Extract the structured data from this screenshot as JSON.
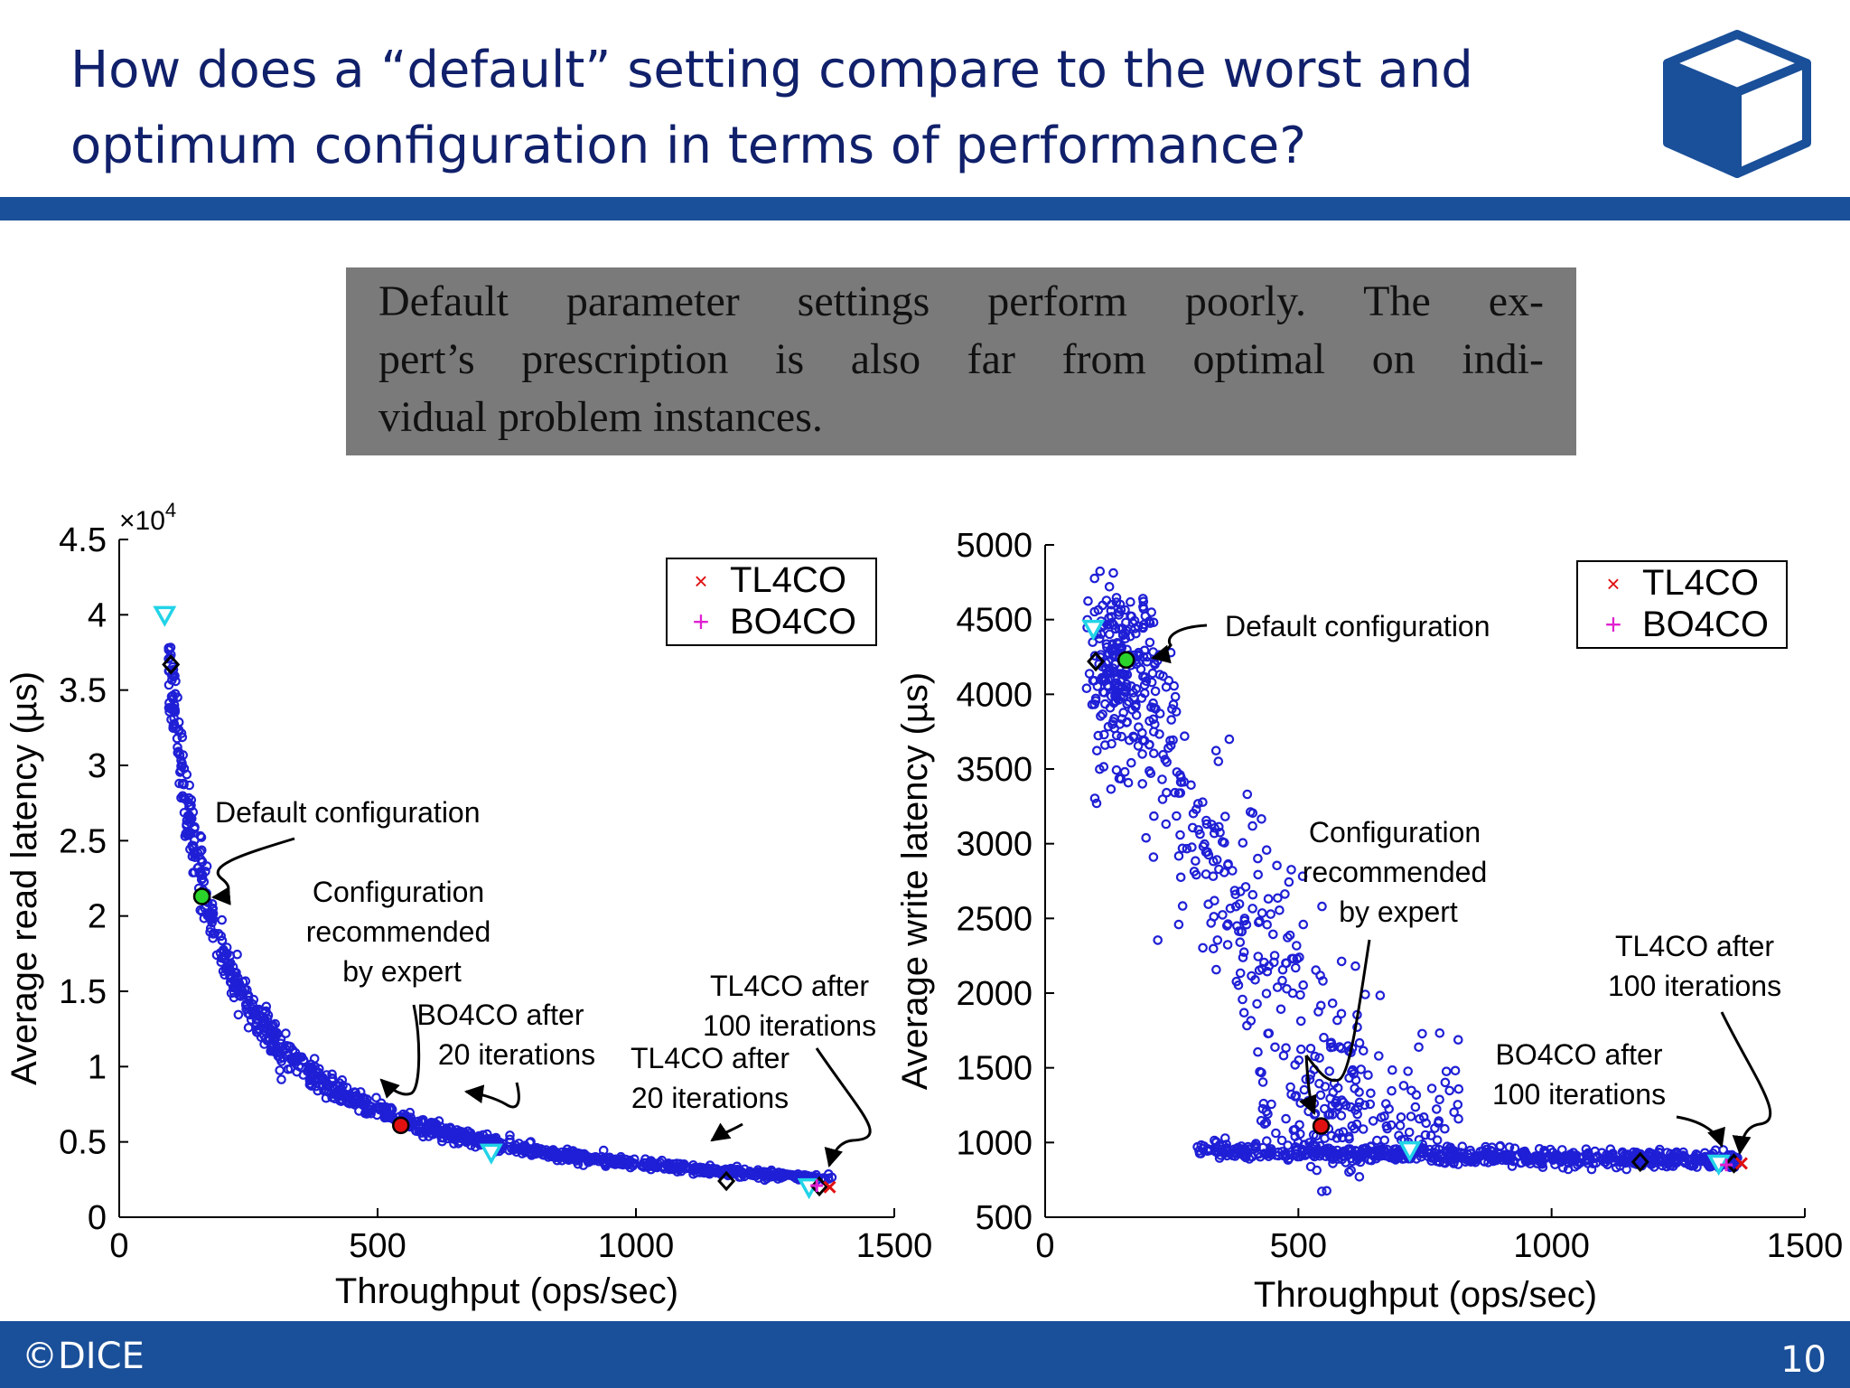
{
  "slide": {
    "title_lines": [
      "How does a “default” setting compare to the worst and",
      "optimum configuration in terms of performance?"
    ],
    "callout_lines": [
      "Default parameter settings perform poorly. The ex-",
      "pert’s prescription is also far from optimal on indi-",
      "vidual problem instances."
    ],
    "footer_left": "©DICE",
    "page_number": "10"
  },
  "chart_data": [
    {
      "type": "scatter",
      "title": "",
      "xlabel": "Throughput (ops/sec)",
      "ylabel": "Average read latency (µs)",
      "y_multiplier": "×10",
      "y_multiplier_exp": "4",
      "xlim": [
        0,
        1500
      ],
      "ylim": [
        0,
        45000
      ],
      "x_ticks": [
        "0",
        "500",
        "1000",
        "1500"
      ],
      "y_ticks": [
        "0",
        "0.5",
        "1",
        "1.5",
        "2",
        "2.5",
        "3",
        "3.5",
        "4",
        "4.5"
      ],
      "series": [
        {
          "name": "TL4CO",
          "points": [
            [
              1375,
              2000
            ]
          ]
        },
        {
          "name": "BO4CO",
          "points": [
            [
              1350,
              2100
            ]
          ]
        }
      ],
      "highlights": [
        {
          "label": "Default configuration",
          "x": 160,
          "y": 21300
        },
        {
          "label": "Configuration recommended by expert",
          "x": 545,
          "y": 6100
        },
        {
          "label": "BO4CO after 20 iterations",
          "x": 720,
          "y": 4300
        },
        {
          "label": "TL4CO after 20 iterations",
          "x": 1175,
          "y": 2400
        },
        {
          "label": "TL4CO after 100 iterations",
          "x": 1370,
          "y": 2000
        },
        {
          "label": "worst (diamond)",
          "x": 100,
          "y": 36700
        },
        {
          "label": "worst (triangle)",
          "x": 88,
          "y": 40000
        }
      ],
      "annotations": [
        "Default configuration",
        "Configuration",
        "recommended",
        "by expert",
        "BO4CO after",
        "20 iterations",
        "TL4CO after",
        "20 iterations",
        "TL4CO after",
        "100 iterations"
      ],
      "legend": {
        "placement": "top-right",
        "entries": [
          "TL4CO",
          "BO4CO"
        ]
      },
      "grid": false,
      "colors": {
        "cloud": "#1f1fd6",
        "tl4co": "#e01010",
        "bo4co": "#e020d0",
        "default": "#2bd42b",
        "triangle": "#22d3e8"
      }
    },
    {
      "type": "scatter",
      "title": "",
      "xlabel": "Throughput (ops/sec)",
      "ylabel": "Average write latency (µs)",
      "xlim": [
        0,
        1500
      ],
      "ylim": [
        500,
        5000
      ],
      "x_ticks": [
        "0",
        "500",
        "1000",
        "1500"
      ],
      "y_ticks": [
        "500",
        "1000",
        "1500",
        "2000",
        "2500",
        "3000",
        "3500",
        "4000",
        "4500",
        "5000"
      ],
      "series": [
        {
          "name": "TL4CO",
          "points": [
            [
              1375,
              860
            ]
          ]
        },
        {
          "name": "BO4CO",
          "points": [
            [
              1345,
              850
            ]
          ]
        }
      ],
      "highlights": [
        {
          "label": "Default configuration",
          "x": 160,
          "y": 4230
        },
        {
          "label": "Configuration recommended by expert",
          "x": 545,
          "y": 1110
        },
        {
          "label": "BO4CO after 100 iterations",
          "x": 1340,
          "y": 850
        },
        {
          "label": "TL4CO after 100 iterations",
          "x": 1375,
          "y": 860
        },
        {
          "label": "worst (diamond)",
          "x": 100,
          "y": 4220
        },
        {
          "label": "worst (triangle)",
          "x": 95,
          "y": 4440
        }
      ],
      "annotations": [
        "Default configuration",
        "Configuration",
        "recommended",
        "by expert",
        "TL4CO after",
        "100 iterations",
        "BO4CO after",
        "100 iterations"
      ],
      "legend": {
        "placement": "top-right",
        "entries": [
          "TL4CO",
          "BO4CO"
        ]
      },
      "grid": false,
      "colors": {
        "cloud": "#1f1fd6",
        "tl4co": "#e01010",
        "bo4co": "#e020d0",
        "default": "#2bd42b",
        "triangle": "#22d3e8"
      }
    }
  ]
}
